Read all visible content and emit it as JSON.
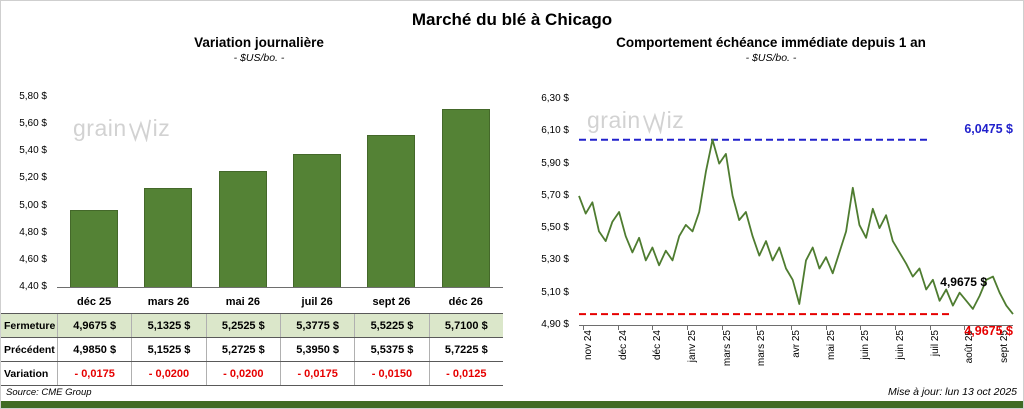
{
  "page": {
    "title": "Marché du blé à Chicago",
    "source_note": "Source: CME Group",
    "update_note": "Mise à jour: lun 13 oct 2025",
    "watermark": {
      "pre": "grain",
      "post": "iz",
      "full": "grainwiz"
    }
  },
  "colors": {
    "bar_green": "#548235",
    "line_green": "#4e7c30",
    "high_blue": "#2121cc",
    "low_red": "#e60000",
    "fermeture_bg": "#dbe7ca",
    "footer_bar": "#3f6b25"
  },
  "chart_data": [
    {
      "id": "variation_journaliere",
      "type": "bar",
      "title": "Variation journalière",
      "subtitle": "- $US/bo. -",
      "categories": [
        "déc 25",
        "mars 26",
        "mai 26",
        "juil 26",
        "sept 26",
        "déc 26"
      ],
      "values": [
        4.9675,
        5.1325,
        5.2525,
        5.3775,
        5.5225,
        5.71
      ],
      "ylim": [
        4.4,
        5.8
      ],
      "yticks": [
        5.8,
        5.6,
        5.4,
        5.2,
        5.0,
        4.8,
        4.6,
        4.4
      ],
      "ytick_labels": [
        "5,80 $",
        "5,60 $",
        "5,40 $",
        "5,20 $",
        "5,00 $",
        "4,80 $",
        "4,60 $",
        "4,40 $"
      ],
      "grid": false,
      "legend": false
    },
    {
      "id": "comportement_echeance_immediate",
      "type": "line",
      "title": "Comportement échéance immédiate depuis 1 an",
      "subtitle": "- $US/bo. -",
      "x_labels": [
        "nov 24",
        "déc 24",
        "déc 24",
        "janv 25",
        "mars 25",
        "mars 25",
        "avr 25",
        "mai 25",
        "juin 25",
        "juin 25",
        "juil 25",
        "août 25",
        "sept 25"
      ],
      "ylim": [
        4.9,
        6.3
      ],
      "yticks": [
        6.3,
        6.1,
        5.9,
        5.7,
        5.5,
        5.3,
        5.1,
        4.9
      ],
      "ytick_labels": [
        "6,30 $",
        "6,10 $",
        "5,90 $",
        "5,70 $",
        "5,50 $",
        "5,30 $",
        "5,10 $",
        "4,90 $"
      ],
      "values": [
        5.7,
        5.59,
        5.66,
        5.48,
        5.42,
        5.54,
        5.6,
        5.45,
        5.35,
        5.44,
        5.3,
        5.38,
        5.27,
        5.36,
        5.3,
        5.45,
        5.52,
        5.48,
        5.6,
        5.85,
        6.0475,
        5.9,
        5.96,
        5.7,
        5.55,
        5.6,
        5.45,
        5.33,
        5.42,
        5.3,
        5.38,
        5.25,
        5.18,
        5.03,
        5.3,
        5.38,
        5.25,
        5.32,
        5.22,
        5.35,
        5.48,
        5.75,
        5.52,
        5.44,
        5.62,
        5.5,
        5.58,
        5.42,
        5.35,
        5.28,
        5.2,
        5.25,
        5.12,
        5.18,
        5.05,
        5.12,
        5.02,
        5.1,
        5.05,
        5.0,
        5.08,
        5.18,
        5.2,
        5.1,
        5.02,
        4.9675
      ],
      "high_line": {
        "value": 6.0475,
        "label": "6,0475 $"
      },
      "low_line": {
        "value": 4.9675,
        "label": "4,9675 $"
      },
      "last_point_label": "4,9675 $",
      "grid": false,
      "legend": false
    },
    {
      "id": "price_table",
      "type": "table",
      "columns": [
        "déc 25",
        "mars 26",
        "mai 26",
        "juil 26",
        "sept 26",
        "déc 26"
      ],
      "rows": [
        {
          "name": "Fermeture",
          "style": "fermeture",
          "values": [
            "4,9675 $",
            "5,1325 $",
            "5,2525 $",
            "5,3775 $",
            "5,5225 $",
            "5,7100 $"
          ]
        },
        {
          "name": "Précédent",
          "style": "precedent",
          "values": [
            "4,9850 $",
            "5,1525 $",
            "5,2725 $",
            "5,3950 $",
            "5,5375 $",
            "5,7225 $"
          ]
        },
        {
          "name": "Variation",
          "style": "variation",
          "values": [
            "- 0,0175",
            "- 0,0200",
            "- 0,0200",
            "- 0,0175",
            "- 0,0150",
            "- 0,0125"
          ]
        }
      ]
    }
  ]
}
